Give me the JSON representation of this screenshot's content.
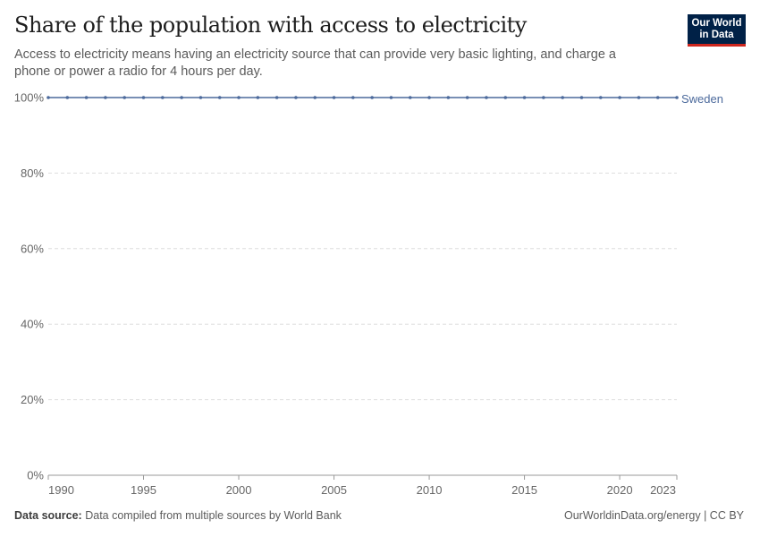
{
  "header": {
    "title": "Share of the population with access to electricity",
    "subtitle": "Access to electricity means having an electricity source that can provide very basic lighting, and charge a phone or power a radio for 4 hours per day."
  },
  "logo": {
    "text": "Our World in Data",
    "colors": {
      "background": "#002147",
      "underline": "#ce261e"
    }
  },
  "footer": {
    "source_label": "Data source:",
    "source_text": "Data compiled from multiple sources by World Bank",
    "credit": "OurWorldinData.org/energy | CC BY"
  },
  "chart_data": {
    "type": "line",
    "title": "Share of the population with access to electricity",
    "x": [
      1990,
      1991,
      1992,
      1993,
      1994,
      1995,
      1996,
      1997,
      1998,
      1999,
      2000,
      2001,
      2002,
      2003,
      2004,
      2005,
      2006,
      2007,
      2008,
      2009,
      2010,
      2011,
      2012,
      2013,
      2014,
      2015,
      2016,
      2017,
      2018,
      2019,
      2020,
      2021,
      2022,
      2023
    ],
    "series": [
      {
        "name": "Sweden",
        "color": "#4c6a9c",
        "values": [
          100,
          100,
          100,
          100,
          100,
          100,
          100,
          100,
          100,
          100,
          100,
          100,
          100,
          100,
          100,
          100,
          100,
          100,
          100,
          100,
          100,
          100,
          100,
          100,
          100,
          100,
          100,
          100,
          100,
          100,
          100,
          100,
          100,
          100
        ]
      }
    ],
    "xlim": [
      1990,
      2023
    ],
    "ylim": [
      0,
      100
    ],
    "xticks": [
      1990,
      1995,
      2000,
      2005,
      2010,
      2015,
      2020,
      2023
    ],
    "yticks": [
      0,
      20,
      40,
      60,
      80,
      100
    ],
    "ytick_format": "%",
    "grid": "horizontal dashed",
    "legend": "right end label"
  }
}
